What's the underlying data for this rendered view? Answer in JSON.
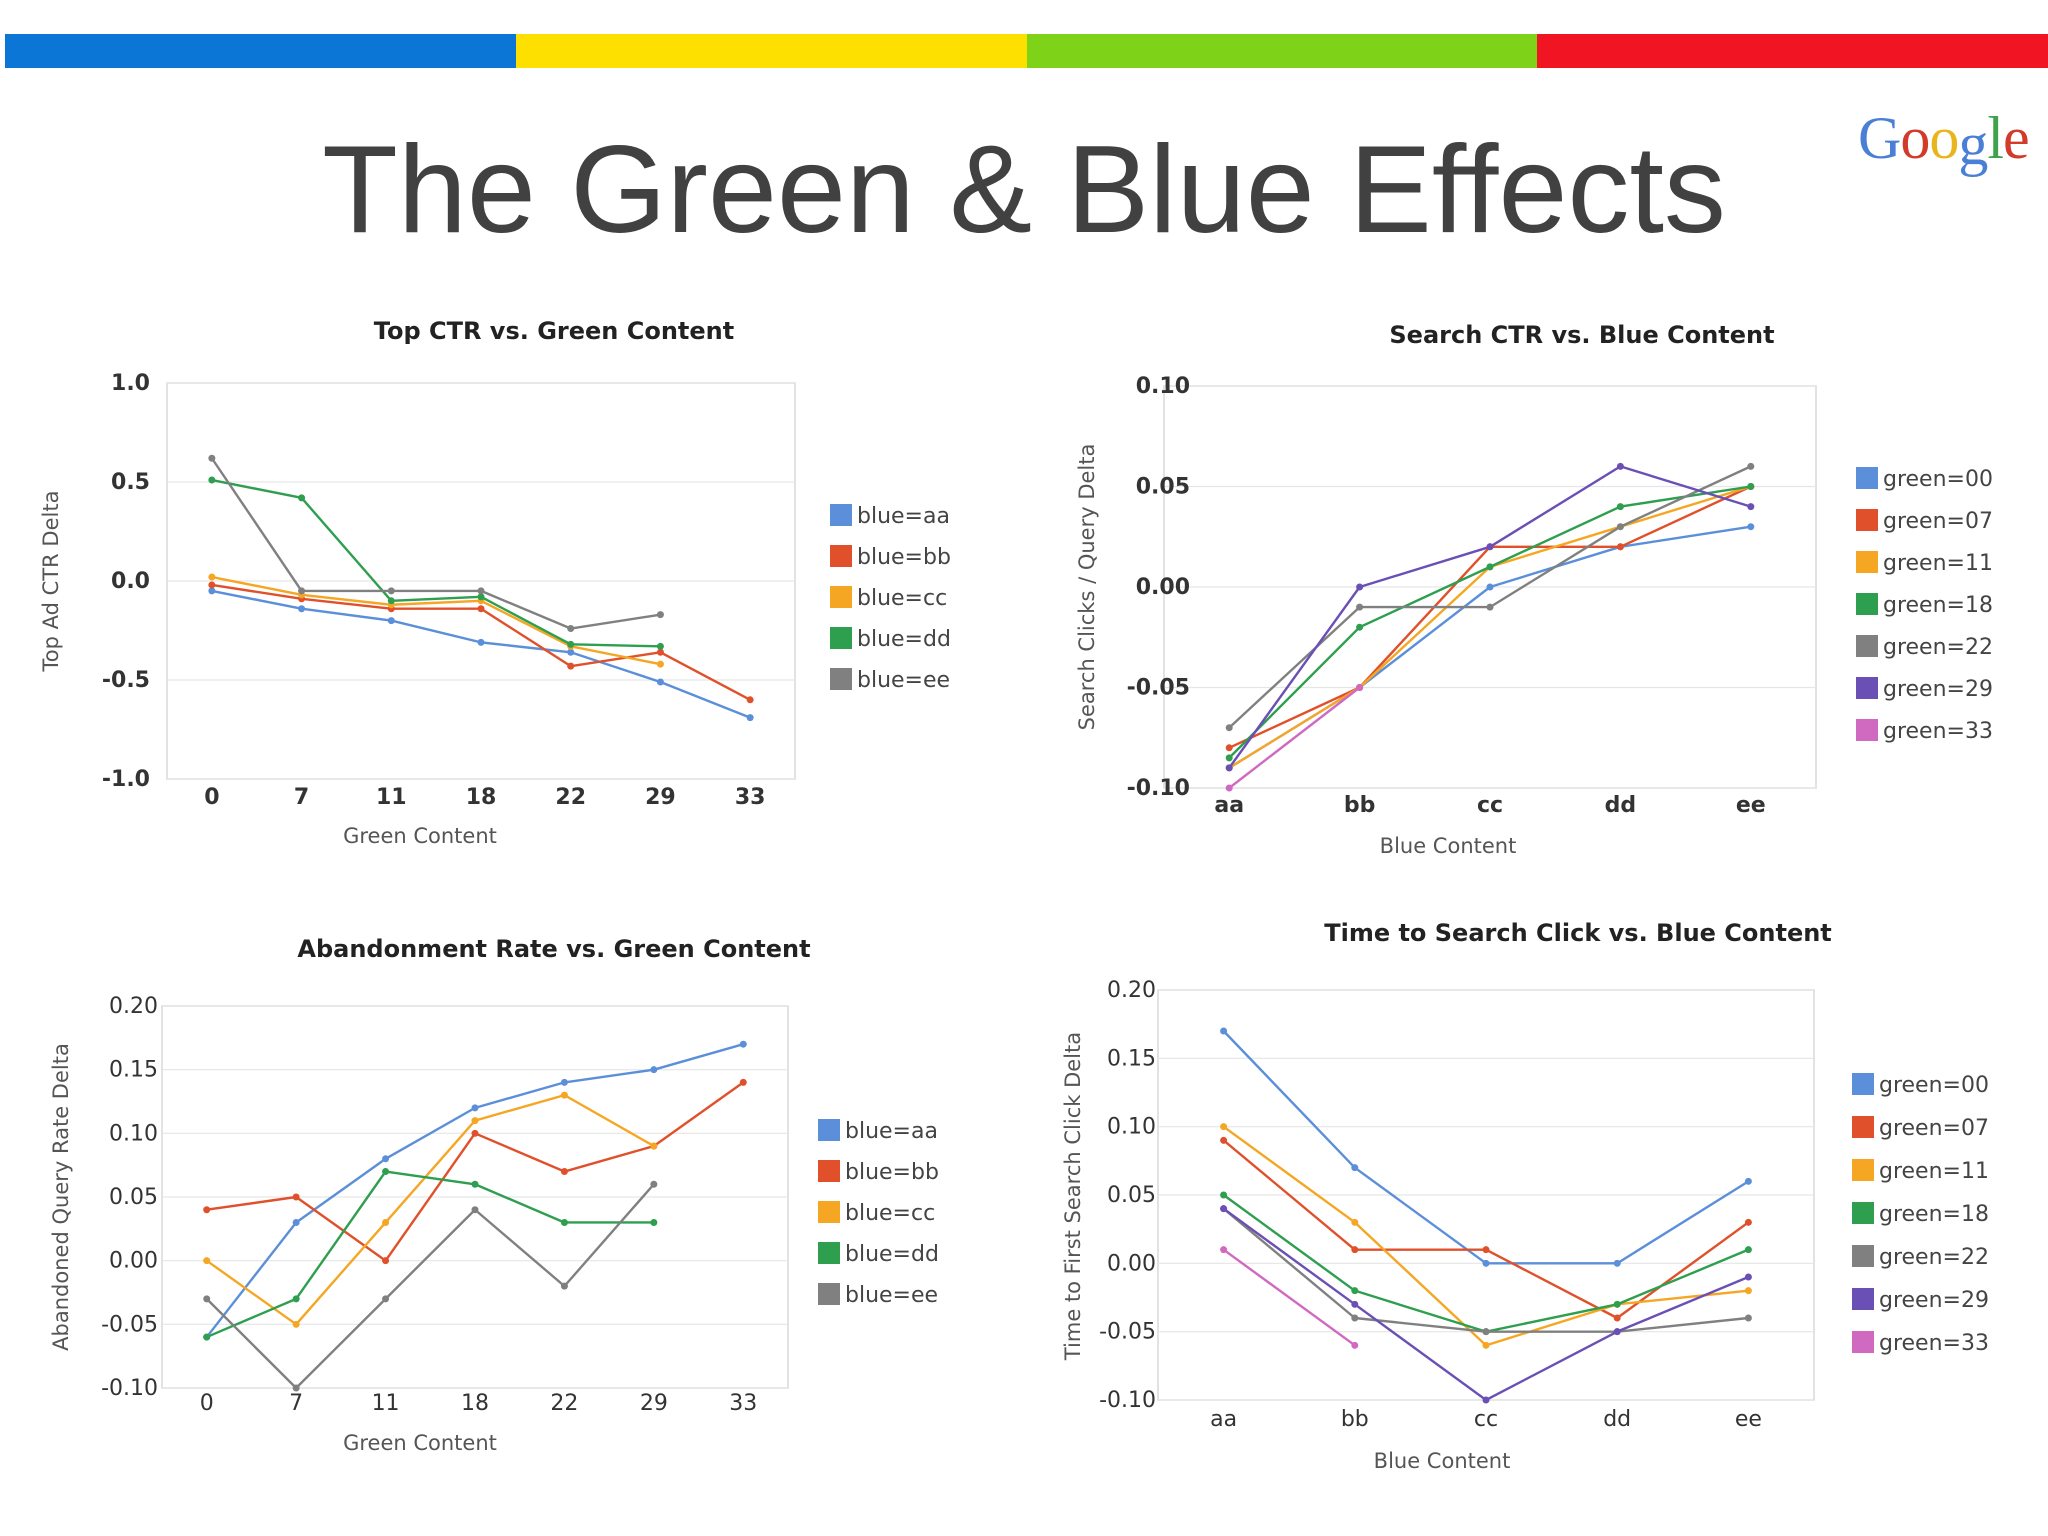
{
  "slide": {
    "title": "The Green & Blue Effects",
    "logo_text": "Google",
    "top_bar_colors": [
      "#0b76d6",
      "#fde000",
      "#7ed319",
      "#f11523"
    ],
    "logo_colors": [
      "#4a7fd6",
      "#d23a2a",
      "#e9b51c",
      "#4a7fd6",
      "#3fa34d",
      "#d23a2a"
    ]
  },
  "chart_data": [
    {
      "type": "line",
      "title": "Top CTR vs. Green Content",
      "xlabel": "Green Content",
      "ylabel": "Top Ad CTR Delta",
      "categories": [
        "0",
        "7",
        "11",
        "18",
        "22",
        "29",
        "33"
      ],
      "ylim": [
        -1.0,
        1.0
      ],
      "yticks": [
        "1.0",
        "0.5",
        "0.0",
        "-0.5",
        "-1.0"
      ],
      "bold_ticks": true,
      "grid": true,
      "legend_position": "right",
      "series": [
        {
          "name": "blue=aa",
          "color": "#5b8fd9",
          "values": [
            -0.05,
            -0.14,
            -0.2,
            -0.31,
            -0.36,
            -0.51,
            -0.69
          ]
        },
        {
          "name": "blue=bb",
          "color": "#e0502a",
          "values": [
            -0.02,
            -0.09,
            -0.14,
            -0.14,
            -0.43,
            -0.36,
            -0.6
          ]
        },
        {
          "name": "blue=cc",
          "color": "#f5a623",
          "values": [
            0.02,
            -0.07,
            -0.12,
            -0.1,
            -0.33,
            -0.42,
            null
          ]
        },
        {
          "name": "blue=dd",
          "color": "#2e9e4f",
          "values": [
            0.51,
            0.42,
            -0.1,
            -0.08,
            -0.32,
            -0.33,
            null
          ]
        },
        {
          "name": "blue=ee",
          "color": "#808080",
          "values": [
            0.62,
            -0.05,
            -0.05,
            -0.05,
            -0.24,
            -0.17,
            null
          ]
        }
      ]
    },
    {
      "type": "line",
      "title": "Search CTR vs. Blue Content",
      "xlabel": "Blue Content",
      "ylabel": "Search Clicks / Query Delta",
      "categories": [
        "aa",
        "bb",
        "cc",
        "dd",
        "ee"
      ],
      "ylim": [
        -0.1,
        0.1
      ],
      "yticks": [
        "0.10",
        "0.05",
        "0.00",
        "-0.05",
        "-0.10"
      ],
      "bold_ticks": true,
      "grid": true,
      "legend_position": "right",
      "series": [
        {
          "name": "green=00",
          "color": "#5b8fd9",
          "values": [
            -0.09,
            -0.05,
            0.0,
            0.02,
            0.03
          ]
        },
        {
          "name": "green=07",
          "color": "#e0502a",
          "values": [
            -0.08,
            -0.05,
            0.02,
            0.02,
            0.05
          ]
        },
        {
          "name": "green=11",
          "color": "#f5a623",
          "values": [
            -0.09,
            -0.05,
            0.01,
            0.03,
            0.05
          ]
        },
        {
          "name": "green=18",
          "color": "#2e9e4f",
          "values": [
            -0.085,
            -0.02,
            0.01,
            0.04,
            0.05
          ]
        },
        {
          "name": "green=22",
          "color": "#808080",
          "values": [
            -0.07,
            -0.01,
            -0.01,
            0.03,
            0.06
          ]
        },
        {
          "name": "green=29",
          "color": "#6a4fb5",
          "values": [
            -0.09,
            0.0,
            0.02,
            0.06,
            0.04
          ]
        },
        {
          "name": "green=33",
          "color": "#d06ac0",
          "values": [
            -0.1,
            -0.05,
            null,
            null,
            null
          ]
        }
      ]
    },
    {
      "type": "line",
      "title": "Abandonment Rate vs. Green Content",
      "xlabel": "Green Content",
      "ylabel": "Abandoned Query Rate Delta",
      "categories": [
        "0",
        "7",
        "11",
        "18",
        "22",
        "29",
        "33"
      ],
      "ylim": [
        -0.1,
        0.2
      ],
      "yticks": [
        "0.20",
        "0.15",
        "0.10",
        "0.05",
        "0.00",
        "-0.05",
        "-0.10"
      ],
      "bold_ticks": false,
      "grid": true,
      "legend_position": "right",
      "series": [
        {
          "name": "blue=aa",
          "color": "#5b8fd9",
          "values": [
            -0.06,
            0.03,
            0.08,
            0.12,
            0.14,
            0.15,
            0.17
          ]
        },
        {
          "name": "blue=bb",
          "color": "#e0502a",
          "values": [
            0.04,
            0.05,
            0.0,
            0.1,
            0.07,
            0.09,
            0.14
          ]
        },
        {
          "name": "blue=cc",
          "color": "#f5a623",
          "values": [
            0.0,
            -0.05,
            0.03,
            0.11,
            0.13,
            0.09,
            null
          ]
        },
        {
          "name": "blue=dd",
          "color": "#2e9e4f",
          "values": [
            -0.06,
            -0.03,
            0.07,
            0.06,
            0.03,
            0.03,
            null
          ]
        },
        {
          "name": "blue=ee",
          "color": "#808080",
          "values": [
            -0.03,
            -0.1,
            -0.03,
            0.04,
            -0.02,
            0.06,
            null
          ]
        }
      ]
    },
    {
      "type": "line",
      "title": "Time to Search Click vs. Blue Content",
      "xlabel": "Blue Content",
      "ylabel": "Time to First Search Click Delta",
      "categories": [
        "aa",
        "bb",
        "cc",
        "dd",
        "ee"
      ],
      "ylim": [
        -0.1,
        0.2
      ],
      "yticks": [
        "0.20",
        "0.15",
        "0.10",
        "0.05",
        "0.00",
        "-0.05",
        "-0.10"
      ],
      "bold_ticks": false,
      "grid": true,
      "legend_position": "right",
      "series": [
        {
          "name": "green=00",
          "color": "#5b8fd9",
          "values": [
            0.17,
            0.07,
            0.0,
            0.0,
            0.06
          ]
        },
        {
          "name": "green=07",
          "color": "#e0502a",
          "values": [
            0.09,
            0.01,
            0.01,
            -0.04,
            0.03
          ]
        },
        {
          "name": "green=11",
          "color": "#f5a623",
          "values": [
            0.1,
            0.03,
            -0.06,
            -0.03,
            -0.02
          ]
        },
        {
          "name": "green=18",
          "color": "#2e9e4f",
          "values": [
            0.05,
            -0.02,
            -0.05,
            -0.03,
            0.01
          ]
        },
        {
          "name": "green=22",
          "color": "#808080",
          "values": [
            0.04,
            -0.04,
            -0.05,
            -0.05,
            -0.04
          ]
        },
        {
          "name": "green=29",
          "color": "#6a4fb5",
          "values": [
            0.04,
            -0.03,
            -0.1,
            -0.05,
            -0.01
          ]
        },
        {
          "name": "green=33",
          "color": "#d06ac0",
          "values": [
            0.01,
            -0.06,
            null,
            null,
            null
          ]
        }
      ]
    }
  ]
}
